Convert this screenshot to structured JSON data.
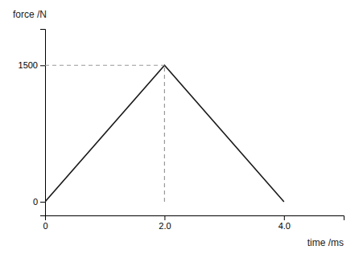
{
  "chart_data": {
    "type": "line",
    "xlabel": "time /ms",
    "ylabel": "force /N",
    "xlim": [
      0,
      5.0
    ],
    "ylim": [
      -150,
      1900
    ],
    "xticks": [
      0,
      {
        "value": 2.0,
        "label": "2.0"
      },
      {
        "value": 4.0,
        "label": "4.0"
      }
    ],
    "yticks": [
      0,
      1500
    ],
    "grid": false,
    "series": [
      {
        "x": [
          0,
          2.0,
          4.0
        ],
        "values": [
          0,
          1500,
          0
        ],
        "color": "#1a1a1a",
        "line_style": "solid"
      },
      {
        "x": [
          0,
          2.0
        ],
        "values": [
          1500,
          1500
        ],
        "color": "#999999",
        "line_style": "dashed"
      },
      {
        "x": [
          2.0,
          2.0
        ],
        "values": [
          0,
          1500
        ],
        "color": "#999999",
        "line_style": "dashed"
      }
    ]
  }
}
